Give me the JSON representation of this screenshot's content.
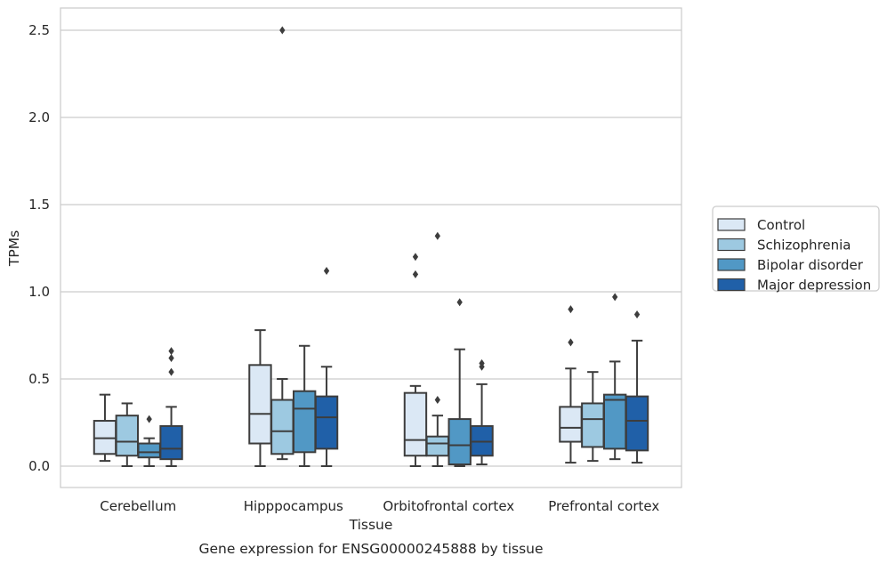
{
  "caption": "Gene expression for ENSG00000245888 by tissue",
  "colors": {
    "Control": "#dbe8f5",
    "Schizophrenia": "#9dc9e1",
    "Bipolar disorder": "#5198c5",
    "Major depression": "#2060a8",
    "grid": "#cccccc",
    "line": "#3d3d3d"
  },
  "chart_data": {
    "type": "box",
    "xlabel": "Tissue",
    "ylabel": "TPMs",
    "ylim": [
      -0.12,
      2.63
    ],
    "yticks": [
      "0.0",
      "0.5",
      "1.0",
      "1.5",
      "2.0",
      "2.5"
    ],
    "grid": "horizontal",
    "legend_position": "right",
    "categories": [
      "Cerebellum",
      "Hipppocampus",
      "Orbitofrontal cortex",
      "Prefrontal cortex"
    ],
    "series": [
      {
        "name": "Control",
        "boxes": [
          {
            "whislo": 0.03,
            "q1": 0.07,
            "med": 0.16,
            "q3": 0.26,
            "whishi": 0.41,
            "fliers": []
          },
          {
            "whislo": 0.0,
            "q1": 0.13,
            "med": 0.3,
            "q3": 0.58,
            "whishi": 0.78,
            "fliers": []
          },
          {
            "whislo": 0.0,
            "q1": 0.06,
            "med": 0.15,
            "q3": 0.42,
            "whishi": 0.46,
            "fliers": [
              1.1,
              1.2
            ]
          },
          {
            "whislo": 0.02,
            "q1": 0.14,
            "med": 0.22,
            "q3": 0.34,
            "whishi": 0.56,
            "fliers": [
              0.71,
              0.9
            ]
          }
        ]
      },
      {
        "name": "Schizophrenia",
        "boxes": [
          {
            "whislo": 0.0,
            "q1": 0.06,
            "med": 0.14,
            "q3": 0.29,
            "whishi": 0.36,
            "fliers": []
          },
          {
            "whislo": 0.04,
            "q1": 0.07,
            "med": 0.2,
            "q3": 0.38,
            "whishi": 0.5,
            "fliers": [
              2.5
            ]
          },
          {
            "whislo": 0.0,
            "q1": 0.06,
            "med": 0.13,
            "q3": 0.17,
            "whishi": 0.29,
            "fliers": [
              0.38,
              1.32
            ]
          },
          {
            "whislo": 0.03,
            "q1": 0.11,
            "med": 0.27,
            "q3": 0.36,
            "whishi": 0.54,
            "fliers": []
          }
        ]
      },
      {
        "name": "Bipolar disorder",
        "boxes": [
          {
            "whislo": 0.0,
            "q1": 0.05,
            "med": 0.08,
            "q3": 0.13,
            "whishi": 0.16,
            "fliers": [
              0.27
            ]
          },
          {
            "whislo": 0.0,
            "q1": 0.08,
            "med": 0.33,
            "q3": 0.43,
            "whishi": 0.69,
            "fliers": []
          },
          {
            "whislo": 0.0,
            "q1": 0.01,
            "med": 0.12,
            "q3": 0.27,
            "whishi": 0.67,
            "fliers": [
              0.94
            ]
          },
          {
            "whislo": 0.04,
            "q1": 0.1,
            "med": 0.38,
            "q3": 0.41,
            "whishi": 0.6,
            "fliers": [
              0.97
            ]
          }
        ]
      },
      {
        "name": "Major depression",
        "boxes": [
          {
            "whislo": 0.0,
            "q1": 0.04,
            "med": 0.1,
            "q3": 0.23,
            "whishi": 0.34,
            "fliers": [
              0.54,
              0.62,
              0.66
            ]
          },
          {
            "whislo": 0.0,
            "q1": 0.1,
            "med": 0.28,
            "q3": 0.4,
            "whishi": 0.57,
            "fliers": [
              1.12
            ]
          },
          {
            "whislo": 0.01,
            "q1": 0.06,
            "med": 0.14,
            "q3": 0.23,
            "whishi": 0.47,
            "fliers": [
              0.57,
              0.59
            ]
          },
          {
            "whislo": 0.02,
            "q1": 0.09,
            "med": 0.26,
            "q3": 0.4,
            "whishi": 0.72,
            "fliers": [
              0.87
            ]
          }
        ]
      }
    ]
  }
}
